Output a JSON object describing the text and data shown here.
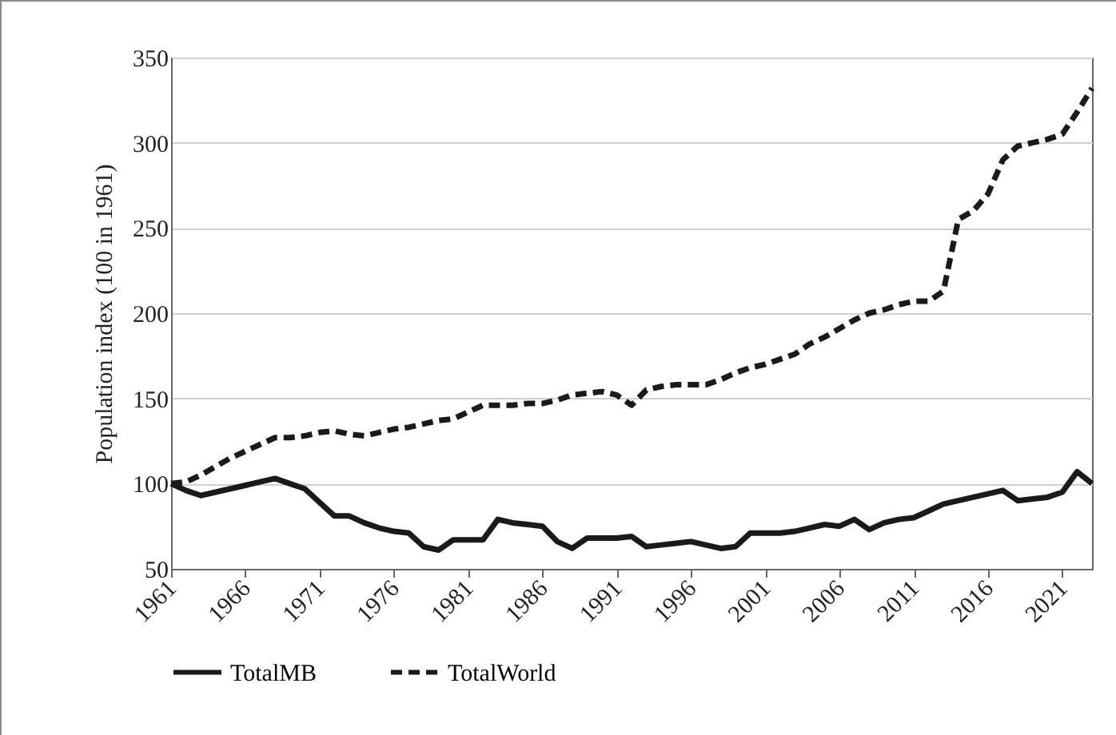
{
  "chart_data": {
    "type": "line",
    "ylabel": "Population index (100 in 1961)",
    "x": [
      1961,
      1962,
      1963,
      1964,
      1965,
      1966,
      1967,
      1968,
      1969,
      1970,
      1971,
      1972,
      1973,
      1974,
      1975,
      1976,
      1977,
      1978,
      1979,
      1980,
      1981,
      1982,
      1983,
      1984,
      1985,
      1986,
      1987,
      1988,
      1989,
      1990,
      1991,
      1992,
      1993,
      1994,
      1995,
      1996,
      1997,
      1998,
      1999,
      2000,
      2001,
      2002,
      2003,
      2004,
      2005,
      2006,
      2007,
      2008,
      2009,
      2010,
      2011,
      2012,
      2013,
      2014,
      2015,
      2016,
      2017,
      2018,
      2019,
      2020,
      2021,
      2022,
      2023
    ],
    "series": [
      {
        "name": "TotalMB",
        "color": "#1a1a1a",
        "line_style": "solid",
        "values": [
          100,
          96,
          93,
          95,
          97,
          99,
          101,
          103,
          100,
          97,
          89,
          81,
          81,
          77,
          74,
          72,
          71,
          63,
          61,
          67,
          67,
          67,
          79,
          77,
          76,
          75,
          66,
          62,
          68,
          68,
          68,
          69,
          63,
          64,
          65,
          66,
          64,
          62,
          63,
          71,
          71,
          71,
          72,
          74,
          76,
          75,
          79,
          73,
          77,
          79,
          80,
          84,
          88,
          90,
          92,
          94,
          96,
          90,
          91,
          92,
          95,
          107,
          100
        ]
      },
      {
        "name": "TotalWorld",
        "color": "#1a1a1a",
        "line_style": "dashed",
        "values": [
          100,
          101,
          105,
          110,
          115,
          119,
          123,
          127,
          127,
          128,
          130,
          131,
          129,
          128,
          130,
          132,
          133,
          135,
          137,
          138,
          142,
          146,
          146,
          146,
          147,
          147,
          149,
          152,
          153,
          154,
          152,
          146,
          155,
          157,
          158,
          158,
          158,
          161,
          165,
          168,
          170,
          173,
          176,
          182,
          186,
          191,
          196,
          200,
          202,
          205,
          207,
          207,
          213,
          255,
          260,
          270,
          290,
          298,
          300,
          302,
          305,
          318,
          332
        ]
      }
    ],
    "xlim": [
      1961,
      2023
    ],
    "xticks": [
      1961,
      1966,
      1971,
      1976,
      1981,
      1986,
      1991,
      1996,
      2001,
      2006,
      2011,
      2016,
      2021
    ],
    "ylim": [
      50,
      350
    ],
    "yticks": [
      50,
      100,
      150,
      200,
      250,
      300,
      350
    ],
    "grid": "y",
    "legend": "bottom",
    "marker": "none"
  }
}
